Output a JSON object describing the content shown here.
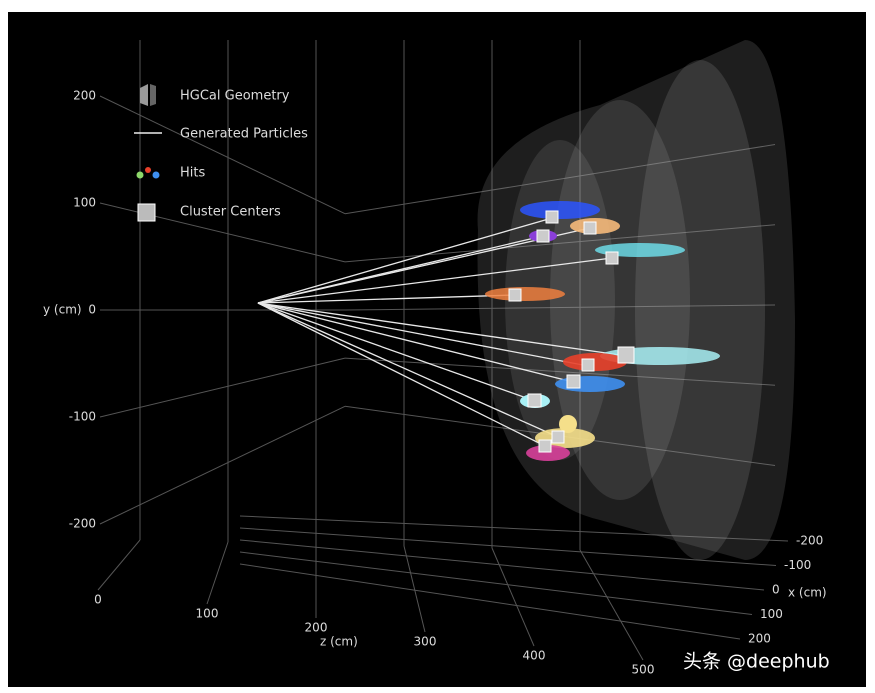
{
  "chart_data": {
    "type": "scatter3d",
    "legend": [
      "HGCal Geometry",
      "Generated Particles",
      "Hits",
      "Cluster Centers"
    ],
    "xlabel": "x (cm)",
    "ylabel": "y (cm)",
    "zlabel": "z (cm)",
    "xticks": [
      -200,
      -100,
      0,
      100,
      200
    ],
    "yticks": [
      200,
      100,
      0,
      -100,
      -200
    ],
    "zticks": [
      0,
      100,
      200,
      300,
      400,
      500
    ]
  },
  "watermark": "头条 @deephub"
}
